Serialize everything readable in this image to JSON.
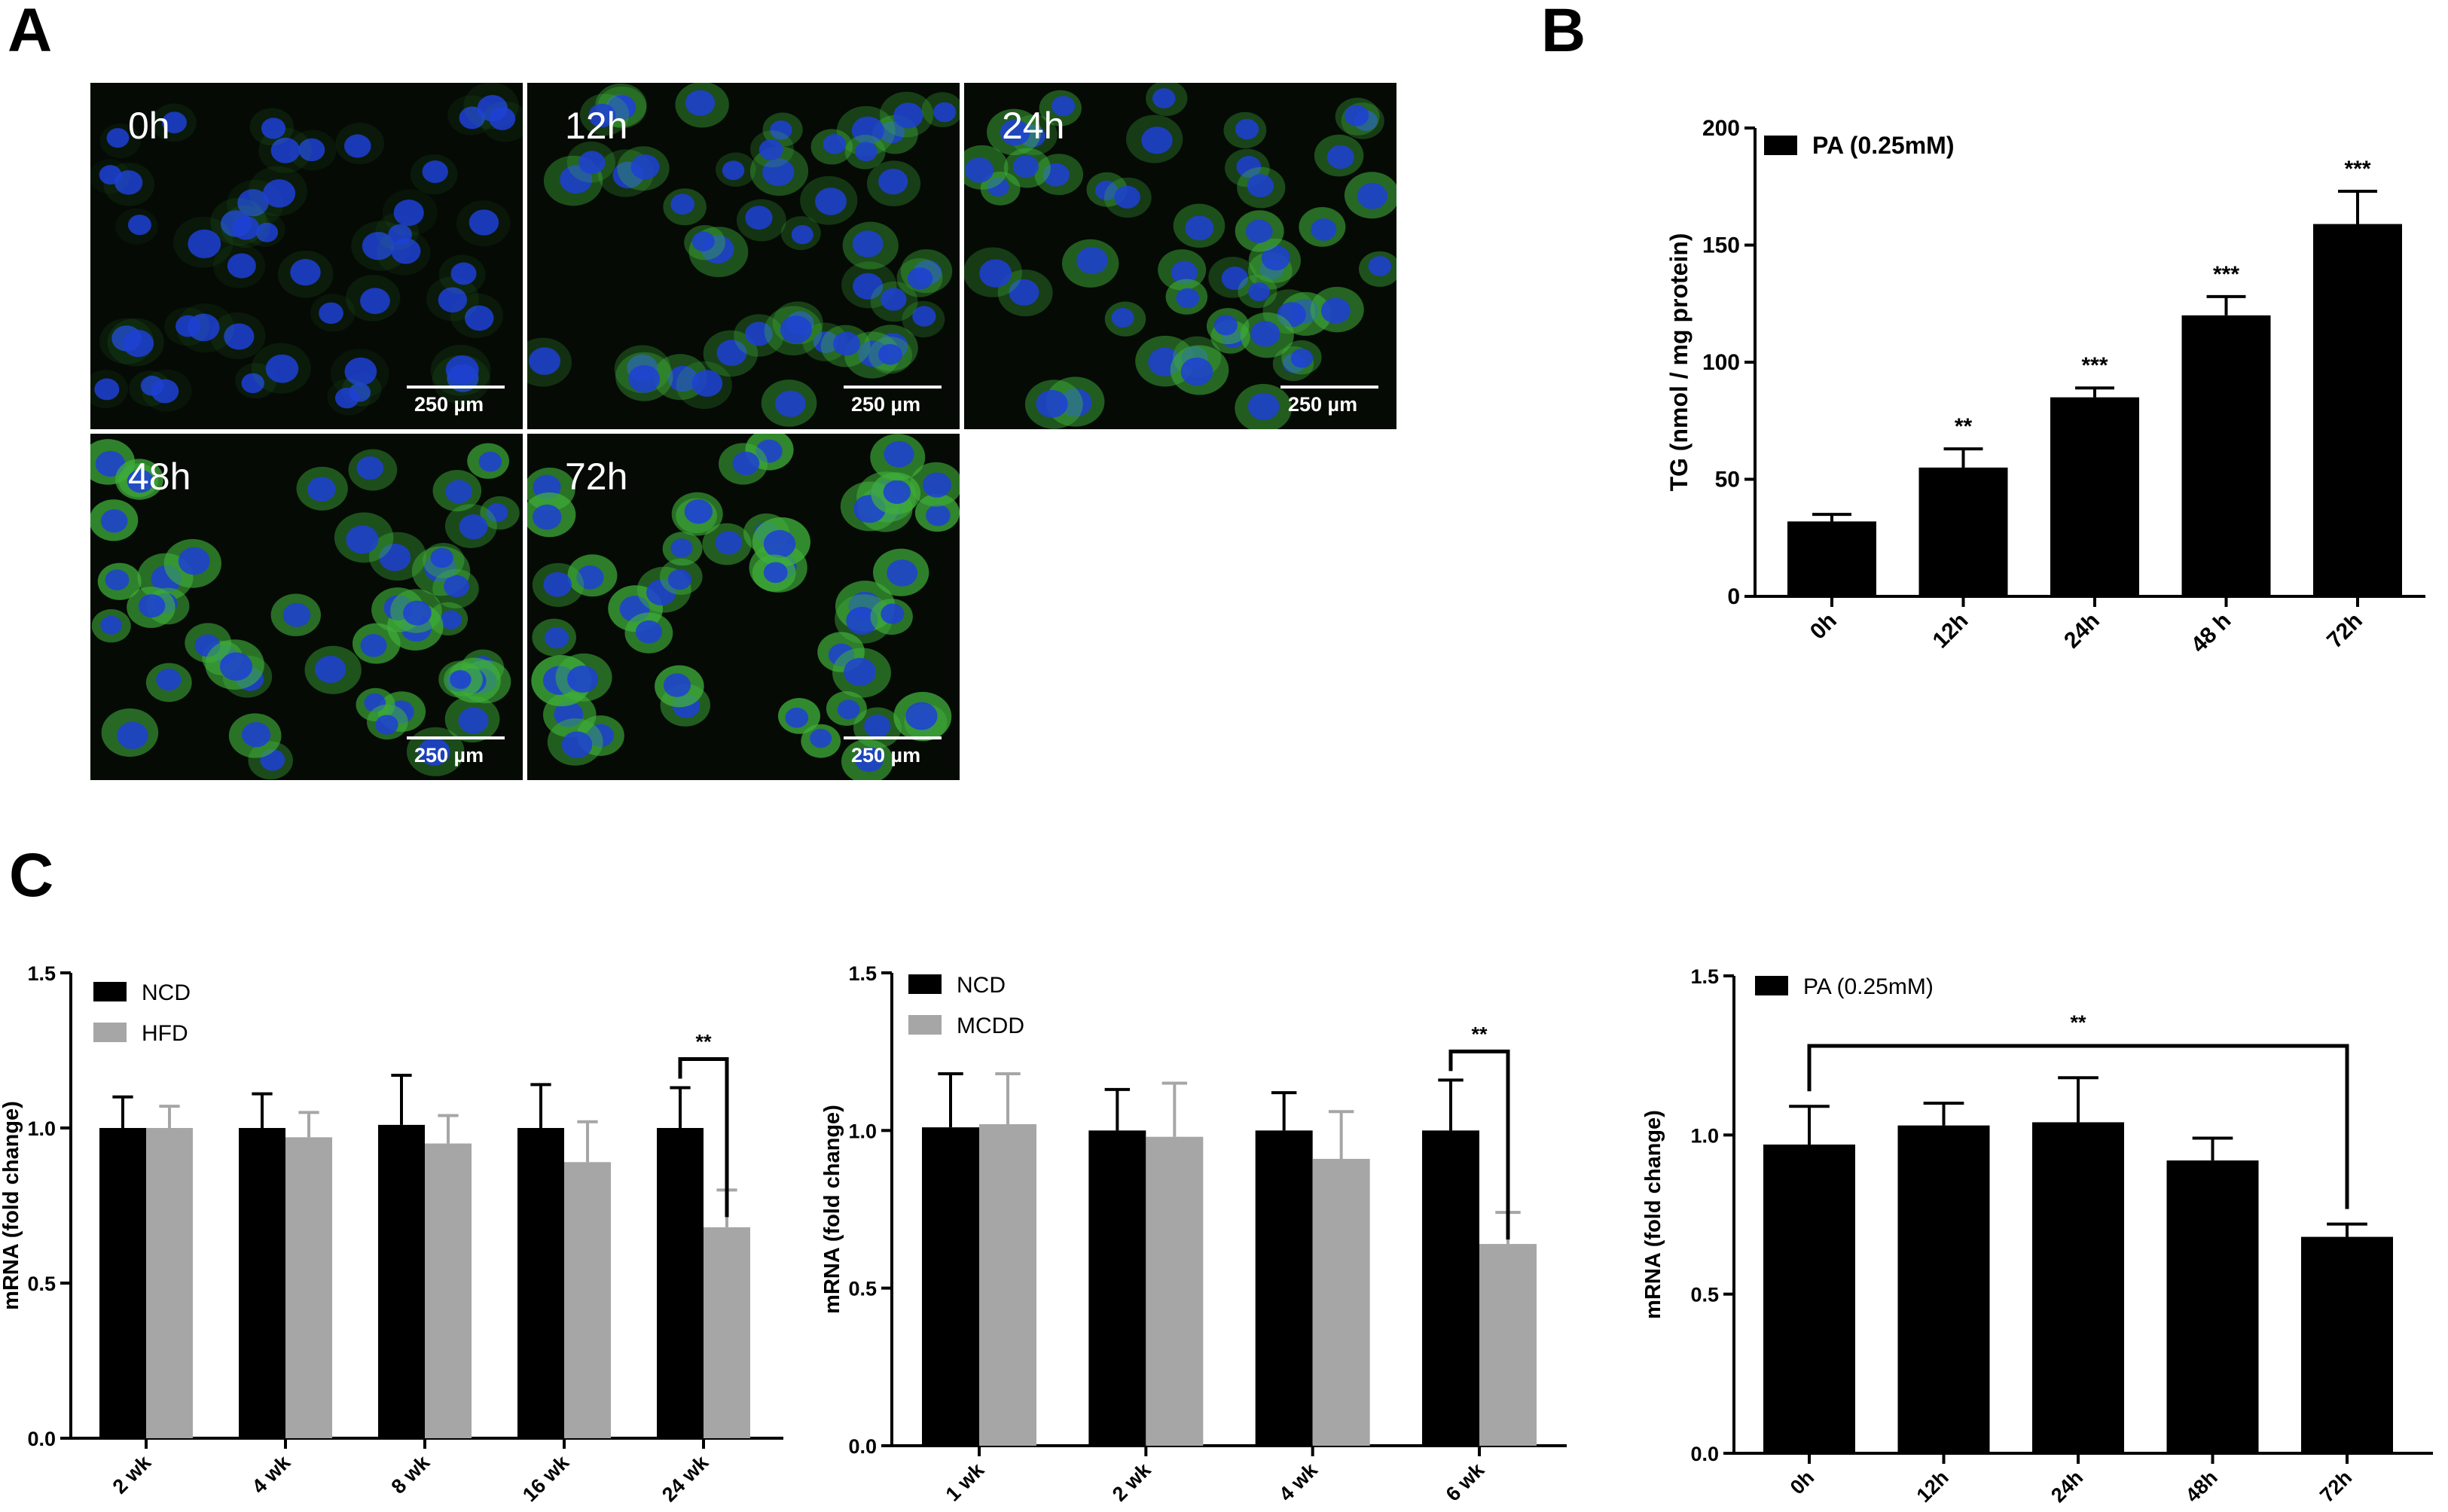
{
  "panels": {
    "a": "A",
    "b": "B",
    "c": "C"
  },
  "micrographs": {
    "tiles": [
      {
        "label": "0h",
        "scale": "250 µm"
      },
      {
        "label": "12h",
        "scale": "250 µm"
      },
      {
        "label": "24h",
        "scale": "250 µm"
      },
      {
        "label": "48h",
        "scale": "250 µm"
      },
      {
        "label": "72h",
        "scale": "250 µm"
      }
    ],
    "colors": {
      "nuclei": "#1d3fd6",
      "lipid": "#3fae3a",
      "background": "#050a05"
    }
  },
  "chart_data": [
    {
      "id": "B",
      "type": "bar",
      "ylabel": "TG (nmol / mg protein)",
      "ylim": [
        0,
        200
      ],
      "yticks": [
        0,
        50,
        100,
        150,
        200
      ],
      "categories": [
        "0h",
        "12h",
        "24h",
        "48 h",
        "72h"
      ],
      "series": [
        {
          "name": "PA (0.25mM)",
          "color": "#000000",
          "values": [
            32,
            55,
            85,
            120,
            159
          ],
          "errors": [
            3,
            8,
            4,
            8,
            14
          ]
        }
      ],
      "annotations": [
        "",
        "**",
        "***",
        "***",
        "***"
      ],
      "legend": "top-left"
    },
    {
      "id": "C1",
      "type": "bar",
      "ylabel": "mRNA (fold change)",
      "ylim": [
        0,
        1.5
      ],
      "yticks": [
        "0.0",
        "0.5",
        "1.0",
        "1.5"
      ],
      "categories": [
        "2 wk",
        "4 wk",
        "8 wk",
        "16 wk",
        "24 wk"
      ],
      "series": [
        {
          "name": "NCD",
          "color": "#000000",
          "values": [
            1.0,
            1.0,
            1.01,
            1.0,
            1.0
          ],
          "errors": [
            0.1,
            0.11,
            0.16,
            0.14,
            0.13
          ]
        },
        {
          "name": "HFD",
          "color": "#a6a6a6",
          "values": [
            1.0,
            0.97,
            0.95,
            0.89,
            0.68
          ],
          "errors": [
            0.07,
            0.08,
            0.09,
            0.13,
            0.12
          ]
        }
      ],
      "significance": [
        {
          "category": 4,
          "label": "**"
        }
      ],
      "legend": "top-left"
    },
    {
      "id": "C2",
      "type": "bar",
      "ylabel": "mRNA (fold change)",
      "ylim": [
        0,
        1.5
      ],
      "yticks": [
        "0.0",
        "0.5",
        "1.0",
        "1.5"
      ],
      "categories": [
        "1 wk",
        "2 wk",
        "4 wk",
        "6 wk"
      ],
      "series": [
        {
          "name": "NCD",
          "color": "#000000",
          "values": [
            1.01,
            1.0,
            1.0,
            1.0
          ],
          "errors": [
            0.17,
            0.13,
            0.12,
            0.16
          ]
        },
        {
          "name": "MCDD",
          "color": "#a6a6a6",
          "values": [
            1.02,
            0.98,
            0.91,
            0.64
          ],
          "errors": [
            0.16,
            0.17,
            0.15,
            0.1
          ]
        }
      ],
      "significance": [
        {
          "category": 3,
          "label": "**"
        }
      ],
      "legend": "top-left"
    },
    {
      "id": "C3",
      "type": "bar",
      "ylabel": "mRNA (fold change)",
      "ylim": [
        0,
        1.5
      ],
      "yticks": [
        "0.0",
        "0.5",
        "1.0",
        "1.5"
      ],
      "categories": [
        "0h",
        "12h",
        "24h",
        "48h",
        "72h"
      ],
      "series": [
        {
          "name": "PA (0.25mM)",
          "color": "#000000",
          "values": [
            0.97,
            1.03,
            1.04,
            0.92,
            0.68
          ],
          "errors": [
            0.12,
            0.07,
            0.14,
            0.07,
            0.04
          ]
        }
      ],
      "bracket": {
        "from": 0,
        "to": 4,
        "label": "**"
      },
      "legend": "top-left"
    }
  ]
}
